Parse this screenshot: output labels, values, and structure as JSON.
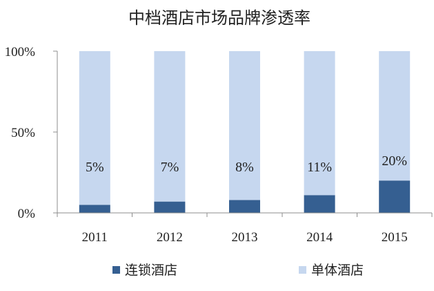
{
  "chart_data": {
    "type": "bar",
    "stacked": true,
    "title": "中档酒店市场品牌渗透率",
    "categories": [
      "2011",
      "2012",
      "2013",
      "2014",
      "2015"
    ],
    "series": [
      {
        "name": "连锁酒店",
        "color": "#355F91",
        "values": [
          5,
          7,
          8,
          11,
          20
        ]
      },
      {
        "name": "单体酒店",
        "color": "#C6D7EF",
        "values": [
          95,
          93,
          92,
          89,
          80
        ]
      }
    ],
    "data_labels": [
      "5%",
      "7%",
      "8%",
      "11%",
      "20%"
    ],
    "y_ticks": [
      {
        "value": 0,
        "label": "0%"
      },
      {
        "value": 50,
        "label": "50%"
      },
      {
        "value": 100,
        "label": "100%"
      }
    ],
    "ylim": [
      0,
      100
    ],
    "xlabel": "",
    "ylabel": "",
    "grid": false,
    "legend": "bottom"
  }
}
